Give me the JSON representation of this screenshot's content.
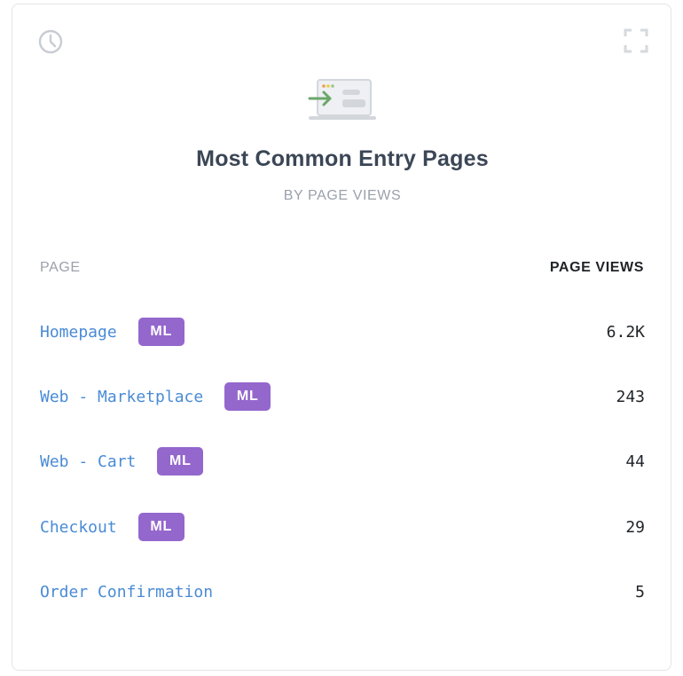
{
  "card": {
    "title": "Most Common Entry Pages",
    "subtitle": "BY PAGE VIEWS"
  },
  "table": {
    "headers": {
      "page": "PAGE",
      "views": "PAGE VIEWS"
    },
    "rows": [
      {
        "page": "Homepage",
        "badge": "ML",
        "views": "6.2K"
      },
      {
        "page": "Web - Marketplace",
        "badge": "ML",
        "views": "243"
      },
      {
        "page": "Web - Cart",
        "badge": "ML",
        "views": "44"
      },
      {
        "page": "Checkout",
        "badge": "ML",
        "views": "29"
      },
      {
        "page": "Order Confirmation",
        "views": "5"
      }
    ]
  },
  "icons": {
    "history": "clock-icon",
    "expand": "expand-icon",
    "hero": "entry-page-icon"
  },
  "colors": {
    "link": "#4a8bd6",
    "badge": "#9467cd",
    "title": "#3b4656",
    "muted": "#9aa1ab"
  }
}
